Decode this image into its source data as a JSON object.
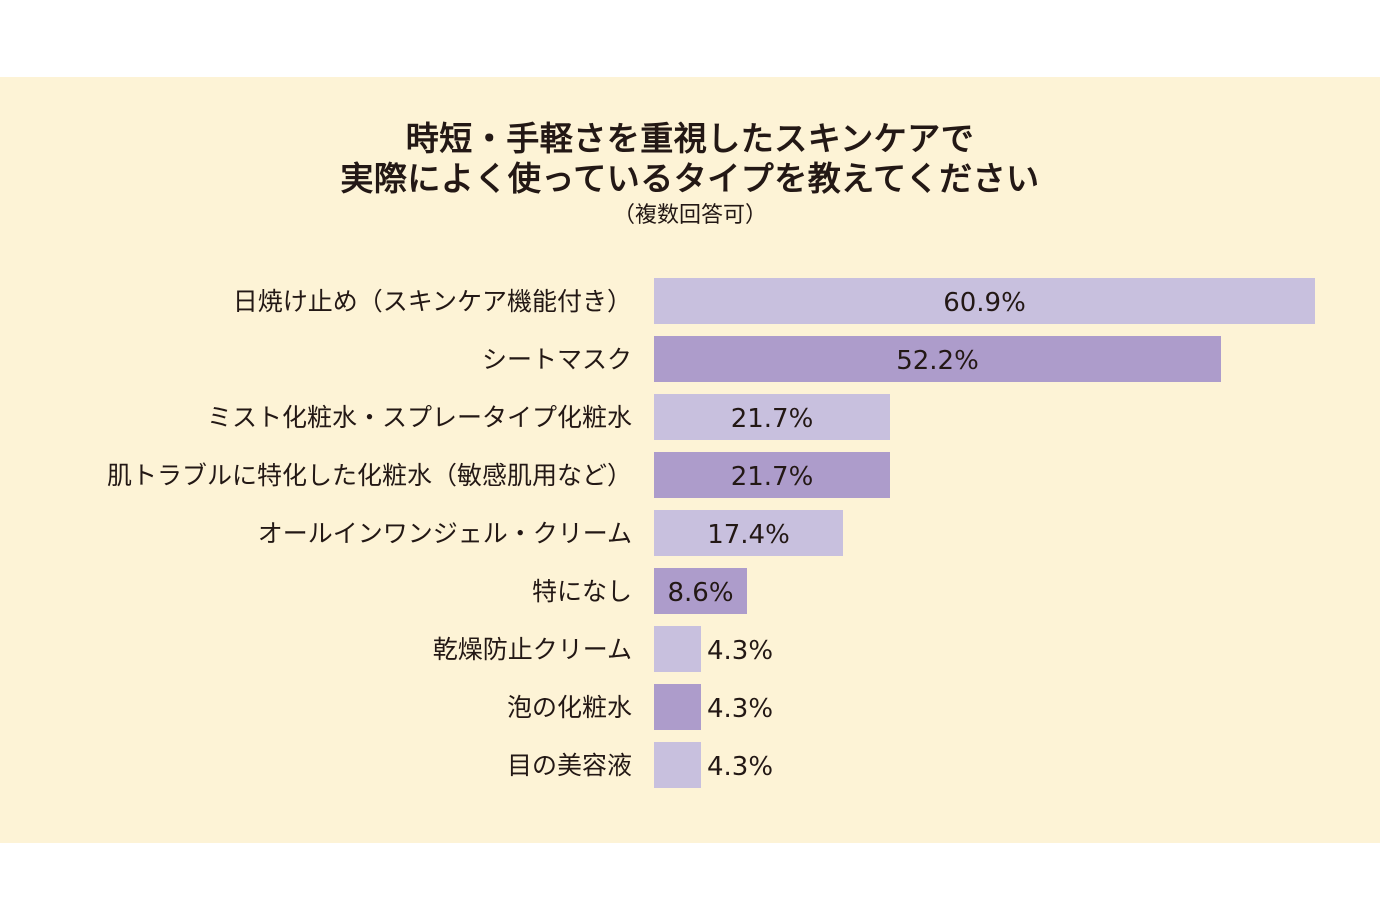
{
  "title_line1": "時短・手軽さを重視したスキンケアで",
  "title_line2": "実際によく使っているタイプを教えてください",
  "subtitle": "（複数回答可）",
  "colors": {
    "background": "#fdf3d6",
    "bar_light": "#c8c0de",
    "bar_dark": "#ad9ccb"
  },
  "chart_data": {
    "type": "bar",
    "orientation": "horizontal",
    "title": "時短・手軽さを重視したスキンケアで実際によく使っているタイプを教えてください",
    "subtitle": "（複数回答可）",
    "categories": [
      "日焼け止め（スキンケア機能付き）",
      "シートマスク",
      "ミスト化粧水・スプレータイプ化粧水",
      "肌トラブルに特化した化粧水（敏感肌用など）",
      "オールインワンジェル・クリーム",
      "特になし",
      "乾燥防止クリーム",
      "泡の化粧水",
      "目の美容液"
    ],
    "values": [
      60.9,
      52.2,
      21.7,
      21.7,
      17.4,
      8.6,
      4.3,
      4.3,
      4.3
    ],
    "value_labels": [
      "60.9%",
      "52.2%",
      "21.7%",
      "21.7%",
      "17.4%",
      "8.6%",
      "4.3%",
      "4.3%",
      "4.3%"
    ],
    "unit": "%",
    "xlim": [
      0,
      60.9
    ],
    "xlabel": "",
    "ylabel": ""
  }
}
